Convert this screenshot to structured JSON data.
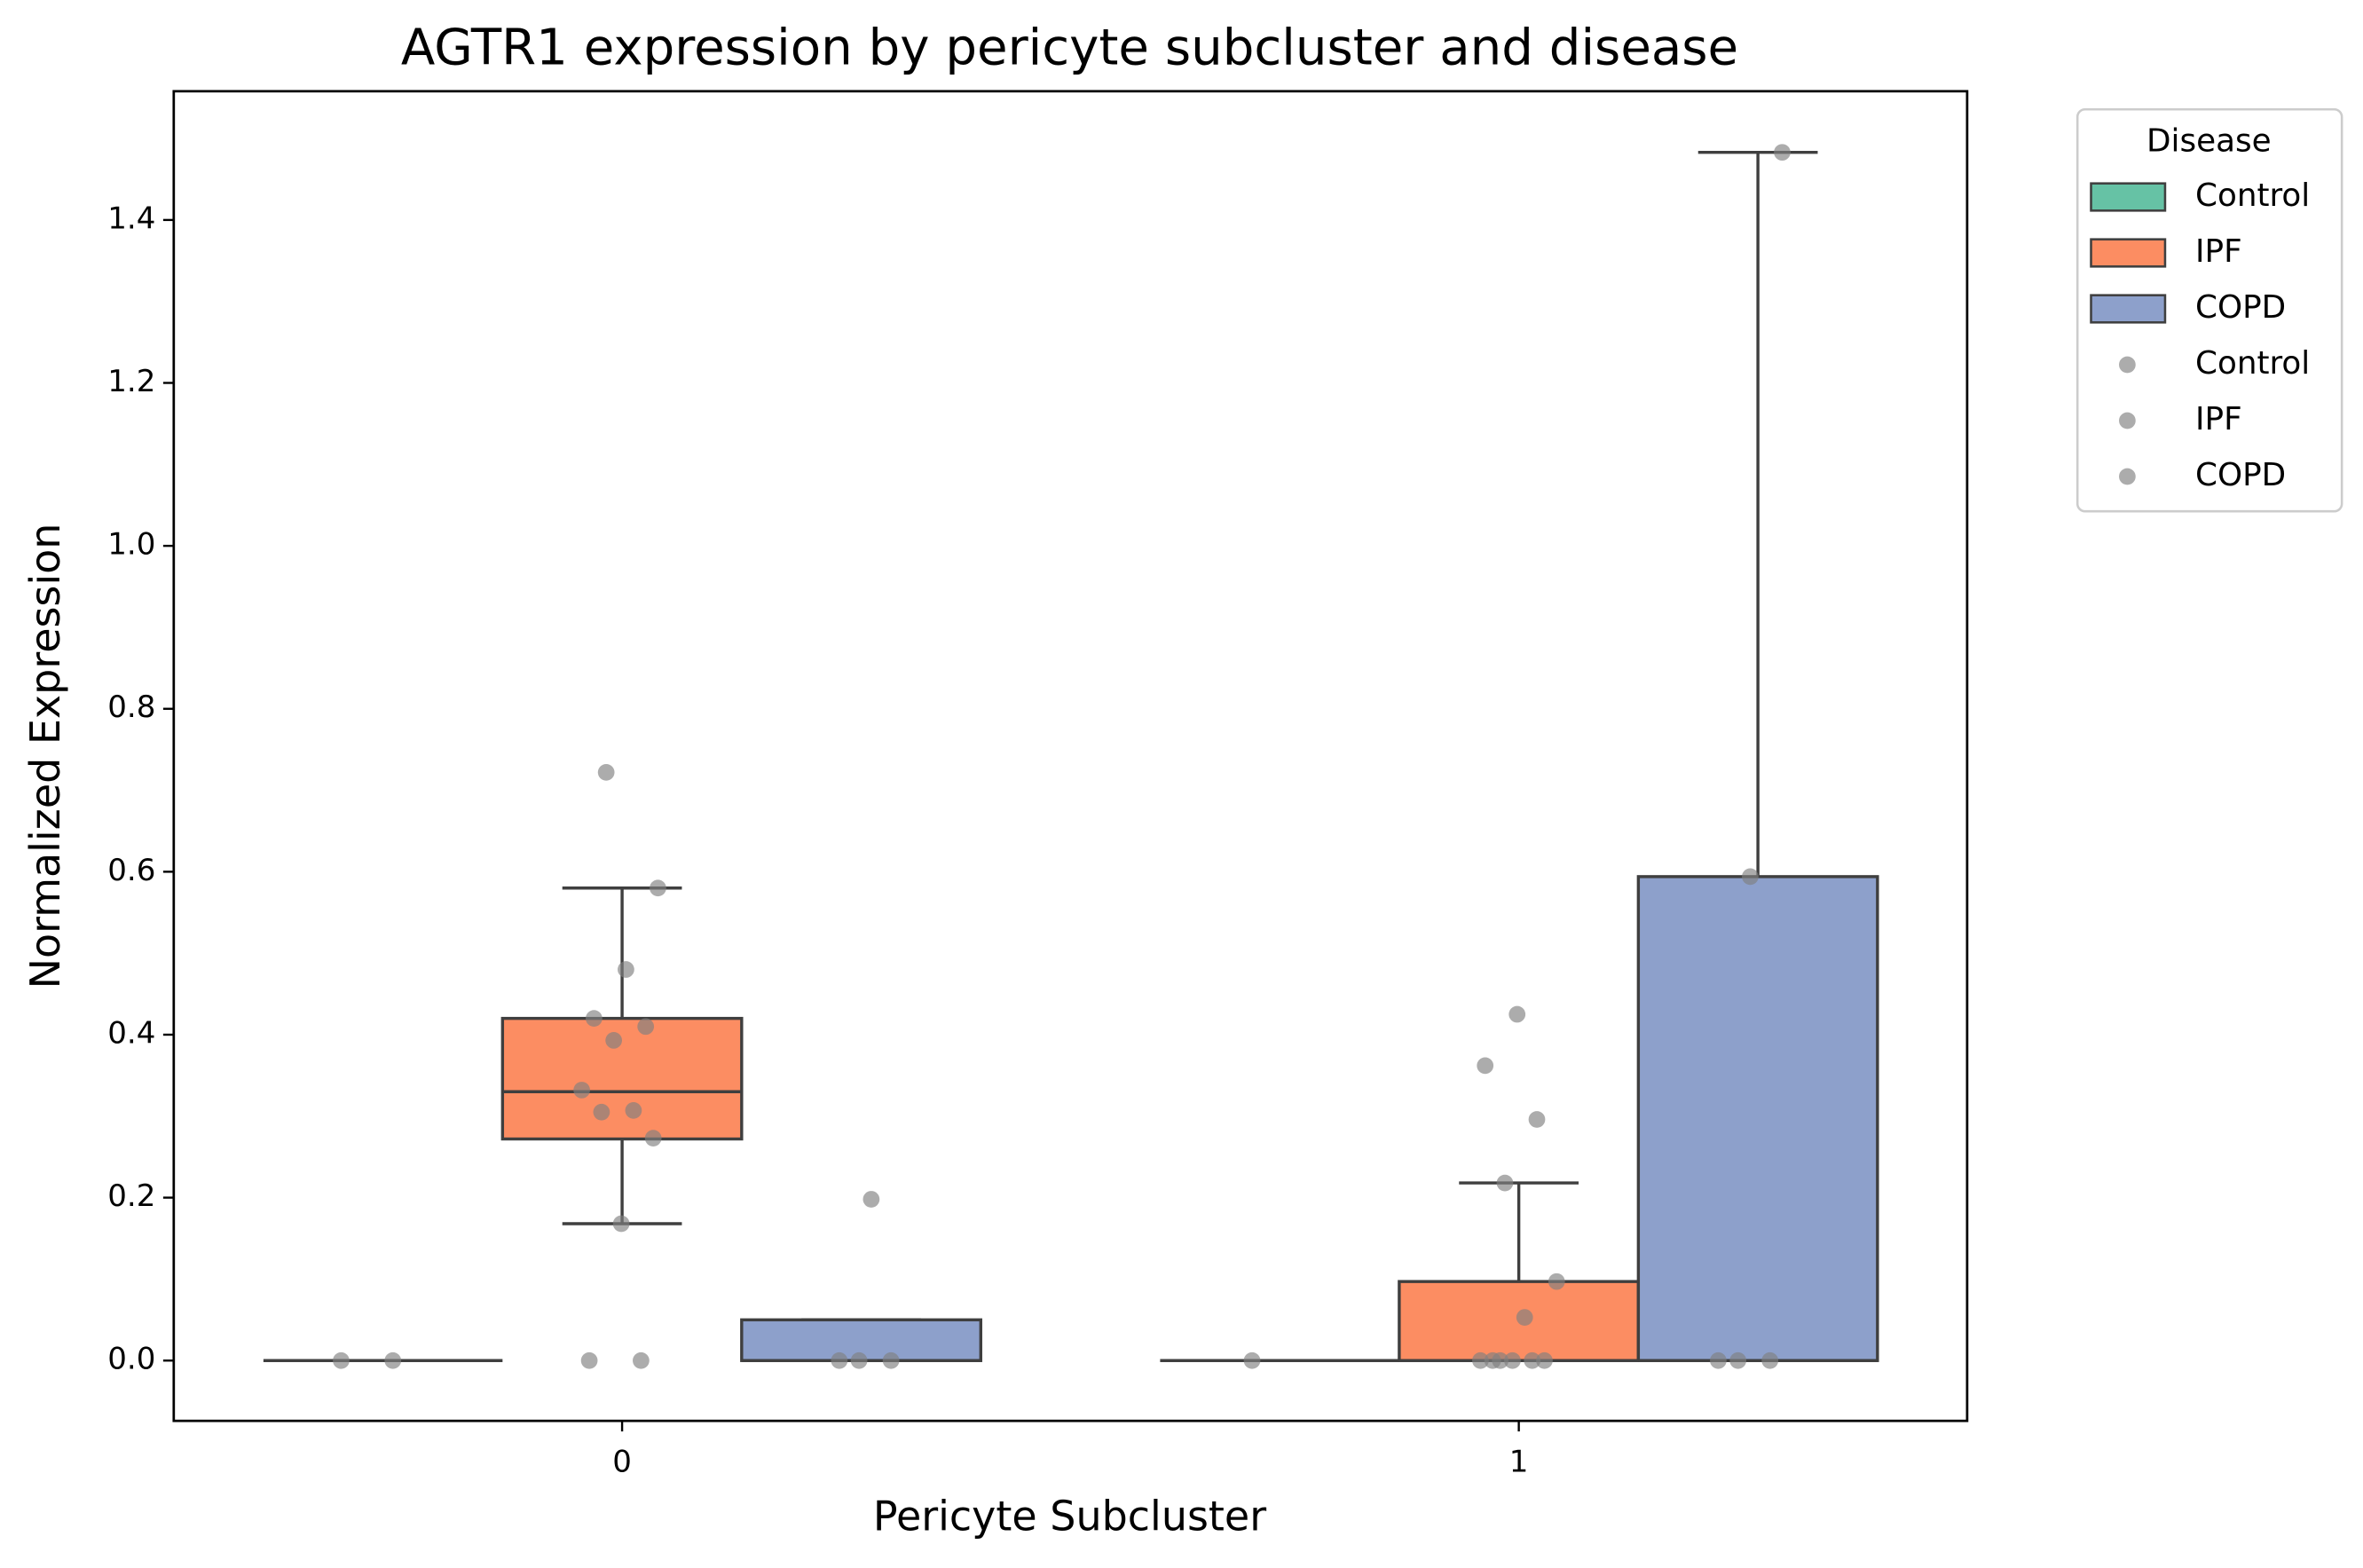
{
  "chart_data": {
    "type": "box",
    "title": "AGTR1 expression by pericyte subcluster and disease",
    "x_label": "Pericyte Subcluster",
    "y_label": "Normalized Expression",
    "categories": [
      "0",
      "1"
    ],
    "ylim": [
      -0.074,
      1.558
    ],
    "yticks": [
      {
        "value": 0,
        "label": "0.0"
      },
      {
        "value": 0.2,
        "label": "0.2"
      },
      {
        "value": 0.4,
        "label": "0.4"
      },
      {
        "value": 0.6,
        "label": "0.6"
      },
      {
        "value": 0.8,
        "label": "0.8"
      },
      {
        "value": 1.0,
        "label": "1.0"
      },
      {
        "value": 1.2,
        "label": "1.2"
      },
      {
        "value": 1.4,
        "label": "1.4"
      }
    ],
    "legend_title": "Disease",
    "legend_position": "outside-upper-right",
    "series": [
      {
        "name": "Control",
        "color": "#66c2a5",
        "boxes": [
          {
            "whislo": 0,
            "q1": 0,
            "median": 0,
            "q3": 0,
            "whishi": 0
          },
          {
            "whislo": 0,
            "q1": 0,
            "median": 0,
            "q3": 0,
            "whishi": 0
          }
        ]
      },
      {
        "name": "IPF",
        "color": "#fc8d62",
        "boxes": [
          {
            "whislo": 0.168,
            "q1": 0.272,
            "median": 0.33,
            "q3": 0.42,
            "whishi": 0.58
          },
          {
            "whislo": 0,
            "q1": 0,
            "median": 0,
            "q3": 0.097,
            "whishi": 0.218
          }
        ]
      },
      {
        "name": "COPD",
        "color": "#8da0cb",
        "boxes": [
          {
            "whislo": 0,
            "q1": 0,
            "median": 0,
            "q3": 0.05,
            "whishi": 0.05
          },
          {
            "whislo": 0,
            "q1": 0,
            "median": 0,
            "q3": 0.594,
            "whishi": 1.483
          }
        ]
      }
    ],
    "point_color": "#808080",
    "points": [
      {
        "name": "Control",
        "values": [
          [
            0,
            0
          ],
          [
            0
          ]
        ]
      },
      {
        "name": "IPF",
        "values": [
          [
            0.722,
            0.58,
            0.48,
            0.42,
            0.41,
            0.393,
            0.332,
            0.307,
            0.305,
            0.273,
            0.168,
            0,
            0
          ],
          [
            0.425,
            0.362,
            0.296,
            0.218,
            0.097,
            0.053,
            0,
            0,
            0,
            0,
            0,
            0
          ]
        ]
      },
      {
        "name": "COPD",
        "values": [
          [
            0.198,
            0,
            0,
            0
          ],
          [
            1.483,
            0.594,
            0,
            0,
            0
          ]
        ]
      }
    ]
  }
}
